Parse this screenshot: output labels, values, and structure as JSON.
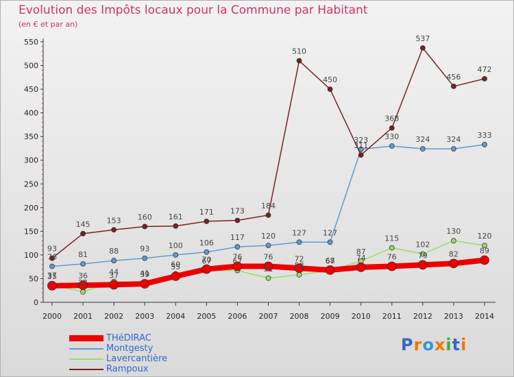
{
  "title": "Evolution des Impôts locaux pour la Commune par Habitant",
  "subtitle": "(en € et par an)",
  "logo": "Proxiti",
  "chart_data": {
    "type": "line",
    "title": "Evolution des Impôts locaux pour la Commune par Habitant",
    "subtitle": "(en € et par an)",
    "x": [
      2000,
      2001,
      2002,
      2003,
      2004,
      2005,
      2006,
      2007,
      2008,
      2009,
      2010,
      2011,
      2012,
      2013,
      2014
    ],
    "ylim": [
      0,
      550
    ],
    "yticks": [
      0,
      50,
      100,
      150,
      200,
      250,
      300,
      350,
      400,
      450,
      500,
      550
    ],
    "grid": false,
    "legend_position": "bottom-left",
    "series": [
      {
        "name": "THéDIRAC",
        "color": "#ee0000",
        "values": [
          35,
          36,
          37,
          39,
          55,
          70,
          76,
          76,
          72,
          68,
          74,
          76,
          79,
          82,
          89
        ]
      },
      {
        "name": "Montgesty",
        "color": "#6699cc",
        "values": [
          76,
          81,
          88,
          93,
          100,
          106,
          117,
          120,
          127,
          127,
          323,
          330,
          324,
          324,
          333
        ]
      },
      {
        "name": "Lavercantière",
        "color": "#99dd66",
        "values": [
          37,
          22,
          44,
          41,
          60,
          67,
          67,
          51,
          58,
          67,
          87,
          115,
          102,
          130,
          120
        ]
      },
      {
        "name": "Rampoux",
        "color": "#772222",
        "values": [
          93,
          145,
          153,
          160,
          161,
          171,
          173,
          184,
          510,
          450,
          311,
          368,
          537,
          456,
          472
        ]
      }
    ]
  }
}
